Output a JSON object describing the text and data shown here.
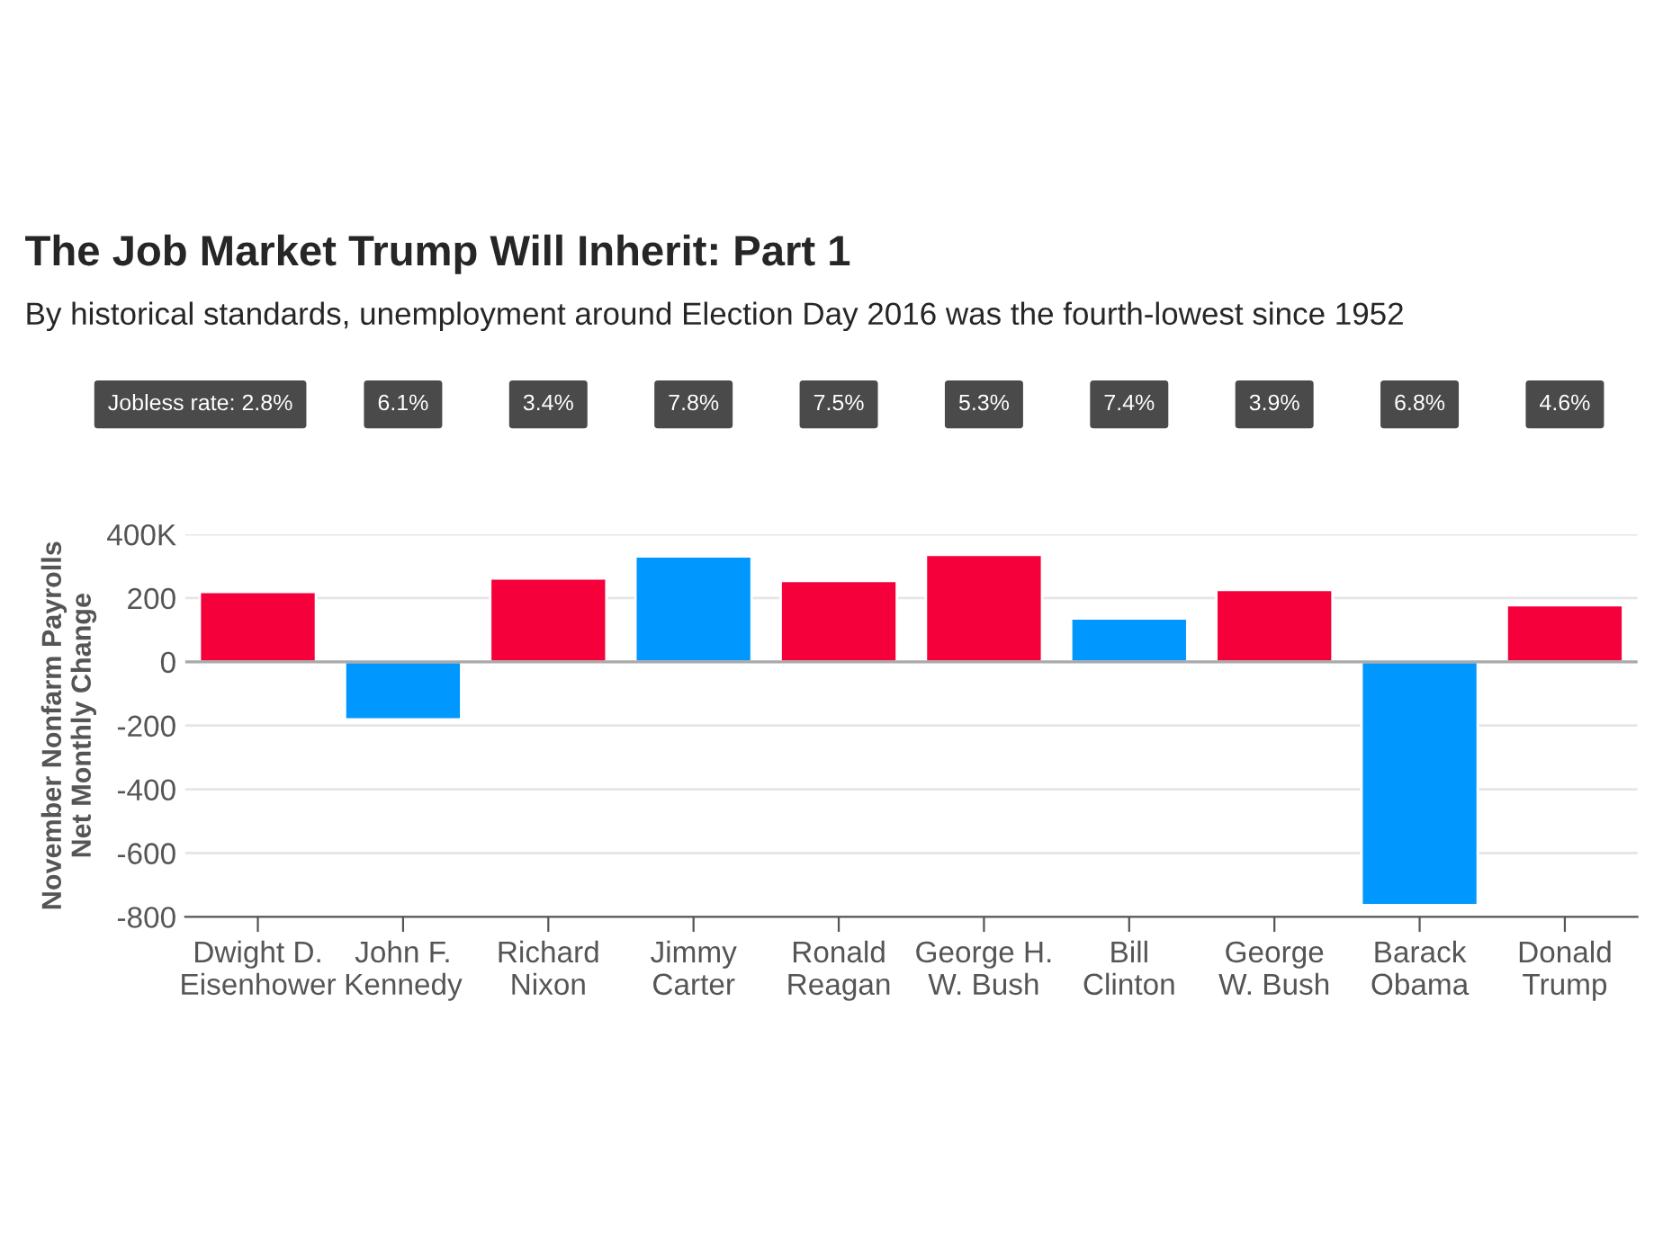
{
  "chart_data": {
    "type": "bar",
    "title": "The Job Market Trump Will Inherit: Part 1",
    "subtitle": "By historical standards, unemployment around Election Day 2016 was the fourth-lowest since 1952",
    "ylabel": "November Nonfarm Payrolls\nNet Monthly Change",
    "categories": [
      "Dwight D.\nEisenhower",
      "John F.\nKennedy",
      "Richard\nNixon",
      "Jimmy\nCarter",
      "Ronald\nReagan",
      "George H.\nW. Bush",
      "Bill\nClinton",
      "George\nW. Bush",
      "Barack\nObama",
      "Donald\nTrump"
    ],
    "values": [
      219,
      -181,
      262,
      331,
      254,
      336,
      136,
      226,
      -763,
      178
    ],
    "colors": [
      "#f5003a",
      "#0098ff",
      "#f5003a",
      "#0098ff",
      "#f5003a",
      "#f5003a",
      "#0098ff",
      "#f5003a",
      "#0098ff",
      "#f5003a"
    ],
    "ylim": [
      -800,
      400
    ],
    "yticks": [
      {
        "value": 400,
        "label": "400K"
      },
      200,
      0,
      -200,
      -400,
      -600,
      -800
    ],
    "grid": "y",
    "ref_lines": [
      {
        "axis": "y",
        "value": 0,
        "color": "#aaaaaa"
      }
    ],
    "annotations": [
      "Jobless rate: 2.8%",
      "6.1%",
      "3.4%",
      "7.8%",
      "7.5%",
      "5.3%",
      "7.4%",
      "3.9%",
      "6.8%",
      "4.6%"
    ]
  }
}
